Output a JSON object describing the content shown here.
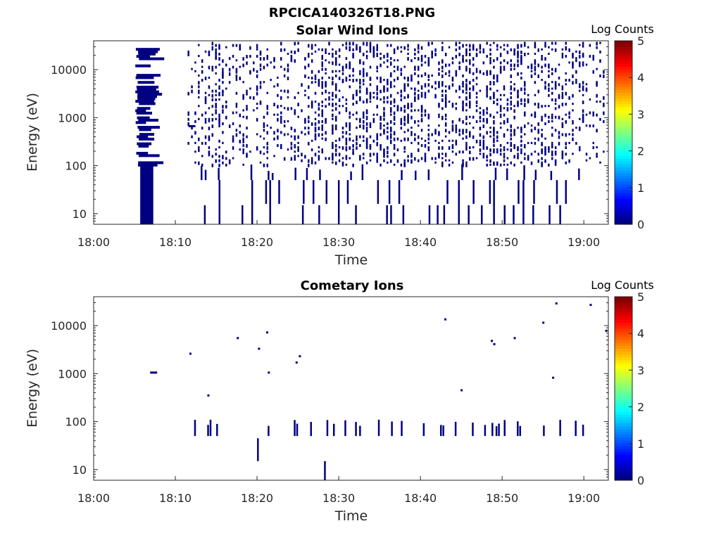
{
  "figure_title": "RPCICA140326T18.PNG",
  "colorbar_label": "Log Counts",
  "colorbar_ticks": [
    "0",
    "1",
    "2",
    "3",
    "4",
    "5"
  ],
  "colormap": [
    "#00007f",
    "#0000ff",
    "#007fff",
    "#00ffff",
    "#7fff7f",
    "#ffff00",
    "#ff7f00",
    "#ff0000",
    "#7f0000"
  ],
  "mark_color": "#000080",
  "chart_data": [
    {
      "type": "heatmap",
      "title": "Solar Wind Ions",
      "xlabel": "Time",
      "ylabel": "Energy (eV)",
      "yscale": "log",
      "ylim": [
        6,
        40000
      ],
      "xlim": [
        "18:00",
        "19:03"
      ],
      "x_ticks": [
        "18:00",
        "18:10",
        "18:20",
        "18:30",
        "18:40",
        "18:50",
        "19:00"
      ],
      "y_ticks": [
        "10",
        "100",
        "1000",
        "10000"
      ],
      "color_range": [
        0,
        5
      ],
      "dense_block": {
        "t_start": 5.7,
        "t_end": 7.3,
        "e_min": 6,
        "e_max": 110,
        "log_counts": 0.2
      },
      "scattered_region": {
        "t_start": 5,
        "t_end": 63,
        "e_min": 110,
        "e_max": 40000,
        "log_counts": 0.2
      },
      "low_energy_lines": [
        {
          "t": 13.5,
          "e_min": 6,
          "e_max": 15
        },
        {
          "t": 15.3,
          "e_min": 6,
          "e_max": 50
        },
        {
          "t": 18.1,
          "e_min": 6,
          "e_max": 15
        },
        {
          "t": 19.3,
          "e_min": 6,
          "e_max": 50
        },
        {
          "t": 21.5,
          "e_min": 6,
          "e_max": 50
        },
        {
          "t": 25.5,
          "e_min": 6,
          "e_max": 15
        },
        {
          "t": 27.5,
          "e_min": 6,
          "e_max": 15
        },
        {
          "t": 29.9,
          "e_min": 6,
          "e_max": 50
        },
        {
          "t": 32.0,
          "e_min": 6,
          "e_max": 15
        },
        {
          "t": 35.8,
          "e_min": 6,
          "e_max": 15
        },
        {
          "t": 36.3,
          "e_min": 6,
          "e_max": 15
        },
        {
          "t": 37.8,
          "e_min": 6,
          "e_max": 15
        },
        {
          "t": 41.0,
          "e_min": 6,
          "e_max": 15
        },
        {
          "t": 42.0,
          "e_min": 6,
          "e_max": 15
        },
        {
          "t": 42.8,
          "e_min": 6,
          "e_max": 15
        },
        {
          "t": 44.6,
          "e_min": 6,
          "e_max": 50
        },
        {
          "t": 45.8,
          "e_min": 6,
          "e_max": 15
        },
        {
          "t": 47.4,
          "e_min": 6,
          "e_max": 15
        },
        {
          "t": 48.9,
          "e_min": 6,
          "e_max": 50
        },
        {
          "t": 50.2,
          "e_min": 6,
          "e_max": 15
        },
        {
          "t": 51.3,
          "e_min": 6,
          "e_max": 15
        },
        {
          "t": 52.5,
          "e_min": 6,
          "e_max": 50
        },
        {
          "t": 53.7,
          "e_min": 6,
          "e_max": 15
        },
        {
          "t": 55.7,
          "e_min": 6,
          "e_max": 15
        },
        {
          "t": 57.0,
          "e_min": 6,
          "e_max": 15
        }
      ]
    },
    {
      "type": "heatmap",
      "title": "Cometary Ions",
      "xlabel": "Time",
      "ylabel": "Energy (eV)",
      "yscale": "log",
      "ylim": [
        6,
        40000
      ],
      "xlim": [
        "18:00",
        "19:03"
      ],
      "x_ticks": [
        "18:00",
        "18:10",
        "18:20",
        "18:30",
        "18:40",
        "18:50",
        "19:00"
      ],
      "y_ticks": [
        "10",
        "100",
        "1000",
        "10000"
      ],
      "color_range": [
        0,
        5
      ],
      "events": [
        {
          "t": 7.0,
          "e": 1050
        },
        {
          "t": 11.8,
          "e": 2600
        },
        {
          "t": 14.0,
          "e": 350
        },
        {
          "t": 17.6,
          "e": 5500
        },
        {
          "t": 20.2,
          "e": 3300
        },
        {
          "t": 21.2,
          "e": 7200
        },
        {
          "t": 21.4,
          "e": 1050
        },
        {
          "t": 24.8,
          "e": 1700
        },
        {
          "t": 25.2,
          "e": 2300
        },
        {
          "t": 43.0,
          "e": 13500
        },
        {
          "t": 45.0,
          "e": 450
        },
        {
          "t": 48.7,
          "e": 4800
        },
        {
          "t": 49.0,
          "e": 4100
        },
        {
          "t": 51.5,
          "e": 5500
        },
        {
          "t": 55.0,
          "e": 11500
        },
        {
          "t": 56.2,
          "e": 820
        },
        {
          "t": 56.6,
          "e": 29000
        },
        {
          "t": 60.8,
          "e": 27000
        },
        {
          "t": 62.7,
          "e": 7800
        }
      ],
      "band_100eV_times": [
        12.3,
        13.9,
        14.2,
        15.0,
        21.3,
        24.5,
        24.8,
        26.5,
        28.5,
        29.3,
        30.7,
        32.0,
        32.5,
        34.8,
        36.4,
        37.6,
        40.3,
        42.4,
        42.7,
        44.2,
        46.3,
        47.8,
        48.7,
        49.2,
        49.5,
        50.2,
        51.8,
        52.1,
        55.0,
        57.0,
        58.9,
        59.8
      ],
      "low_energy_lines": [
        {
          "t": 20.0,
          "e_min": 15,
          "e_max": 45
        },
        {
          "t": 28.2,
          "e_min": 6,
          "e_max": 15
        }
      ]
    }
  ]
}
